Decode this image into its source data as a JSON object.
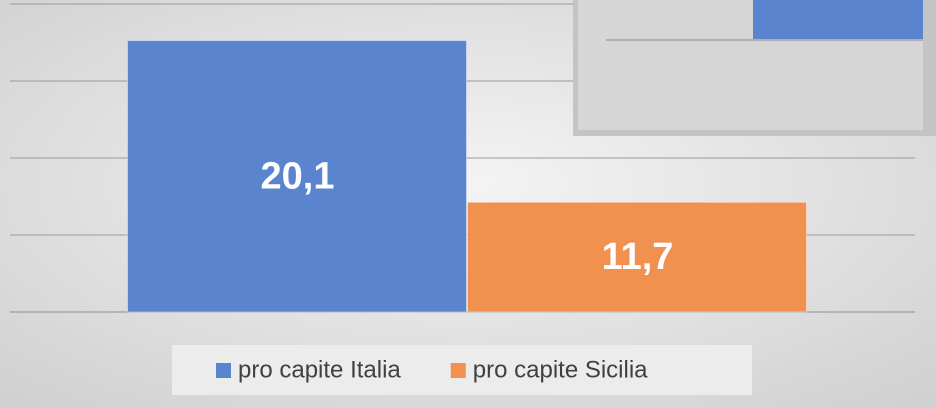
{
  "chart_data": {
    "type": "bar",
    "categories": [
      null
    ],
    "series": [
      {
        "name": "pro capite Italia",
        "color": "#5b84cf",
        "values": [
          20.1
        ],
        "value_labels": [
          "20,1"
        ]
      },
      {
        "name": "pro capite Sicilia",
        "color": "#f0914f",
        "values": [
          11.7
        ],
        "value_labels": [
          "11,7"
        ]
      }
    ],
    "ylim": [
      6,
      22
    ],
    "yticks": [
      6,
      10,
      14,
      18,
      22
    ],
    "grid": true
  }
}
